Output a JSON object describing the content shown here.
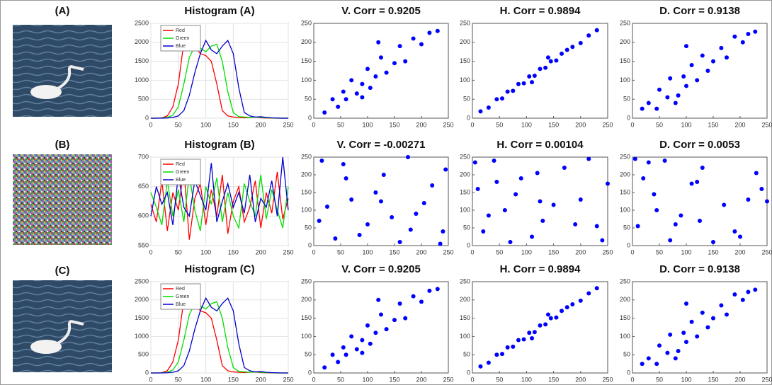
{
  "image_labels": [
    "(A)",
    "(B)",
    "(C)"
  ],
  "chart_data": [
    {
      "type": "line",
      "title": "Histogram (A)",
      "x": [
        0,
        10,
        20,
        30,
        40,
        50,
        60,
        70,
        80,
        90,
        100,
        110,
        120,
        130,
        140,
        150,
        160,
        170,
        180,
        190,
        200,
        210,
        220,
        230,
        240,
        250
      ],
      "series": [
        {
          "name": "Red",
          "color": "#ff0000",
          "values": [
            0,
            0,
            10,
            60,
            300,
            900,
            2000,
            2300,
            1900,
            1700,
            1650,
            1500,
            900,
            200,
            60,
            30,
            20,
            10,
            20,
            30,
            10,
            5,
            0,
            0,
            0,
            0
          ]
        },
        {
          "name": "Green",
          "color": "#00dd00",
          "values": [
            0,
            0,
            5,
            20,
            80,
            300,
            900,
            1600,
            1900,
            1850,
            1750,
            1900,
            1950,
            1500,
            700,
            150,
            40,
            30,
            20,
            30,
            20,
            10,
            5,
            0,
            0,
            0
          ]
        },
        {
          "name": "Blue",
          "color": "#0000cc",
          "values": [
            0,
            0,
            0,
            5,
            20,
            60,
            200,
            600,
            1200,
            1700,
            2050,
            1800,
            1700,
            1900,
            2050,
            1700,
            800,
            150,
            60,
            30,
            40,
            20,
            10,
            5,
            0,
            0
          ]
        }
      ],
      "xlim": [
        0,
        250
      ],
      "xticks": [
        0,
        50,
        100,
        150,
        200,
        250
      ],
      "ylim": [
        0,
        2500
      ],
      "yticks": [
        0,
        500,
        1000,
        1500,
        2000,
        2500
      ],
      "grid": true,
      "legend": "upper left"
    },
    {
      "type": "scatter",
      "title": "V. Corr = 0.9205",
      "color": "#0000ff",
      "x": [
        20,
        35,
        45,
        55,
        60,
        70,
        80,
        90,
        100,
        105,
        115,
        125,
        135,
        150,
        160,
        170,
        185,
        200,
        215,
        230,
        120,
        90
      ],
      "y": [
        15,
        50,
        30,
        70,
        50,
        100,
        65,
        90,
        130,
        80,
        110,
        160,
        120,
        145,
        190,
        150,
        210,
        195,
        225,
        230,
        200,
        55
      ],
      "xlim": [
        0,
        250
      ],
      "xticks": [
        0,
        50,
        100,
        150,
        200,
        250
      ],
      "ylim": [
        0,
        250
      ],
      "yticks": [
        0,
        50,
        100,
        150,
        200,
        250
      ]
    },
    {
      "type": "scatter",
      "title": "H. Corr = 0.9894",
      "color": "#0000ff",
      "x": [
        15,
        30,
        45,
        55,
        65,
        75,
        85,
        95,
        105,
        115,
        125,
        135,
        145,
        155,
        165,
        175,
        185,
        200,
        215,
        230,
        110,
        140
      ],
      "y": [
        18,
        28,
        50,
        52,
        70,
        72,
        90,
        92,
        110,
        112,
        130,
        133,
        150,
        152,
        170,
        180,
        188,
        198,
        218,
        232,
        95,
        160
      ],
      "xlim": [
        0,
        250
      ],
      "xticks": [
        0,
        50,
        100,
        150,
        200,
        250
      ],
      "ylim": [
        0,
        250
      ],
      "yticks": [
        0,
        50,
        100,
        150,
        200,
        250
      ]
    },
    {
      "type": "scatter",
      "title": "D. Corr = 0.9138",
      "color": "#0000ff",
      "x": [
        18,
        30,
        45,
        50,
        65,
        70,
        85,
        95,
        100,
        110,
        120,
        130,
        140,
        150,
        165,
        175,
        190,
        205,
        215,
        228,
        100,
        80
      ],
      "y": [
        25,
        40,
        25,
        75,
        55,
        105,
        60,
        110,
        85,
        140,
        100,
        165,
        125,
        150,
        185,
        160,
        215,
        200,
        222,
        228,
        190,
        40
      ],
      "xlim": [
        0,
        250
      ],
      "xticks": [
        0,
        50,
        100,
        150,
        200,
        250
      ],
      "ylim": [
        0,
        250
      ],
      "yticks": [
        0,
        50,
        100,
        150,
        200,
        250
      ]
    },
    {
      "type": "line",
      "title": "Histogram (B)",
      "x": [
        0,
        10,
        20,
        30,
        40,
        50,
        60,
        70,
        80,
        90,
        100,
        110,
        120,
        130,
        140,
        150,
        160,
        170,
        180,
        190,
        200,
        210,
        220,
        230,
        240,
        250
      ],
      "series": [
        {
          "name": "Red",
          "color": "#ff0000",
          "values": [
            620,
            590,
            660,
            575,
            640,
            610,
            680,
            560,
            630,
            655,
            585,
            645,
            600,
            670,
            570,
            625,
            650,
            590,
            615,
            660,
            580,
            640,
            605,
            675,
            595,
            630
          ]
        },
        {
          "name": "Green",
          "color": "#00dd00",
          "values": [
            640,
            615,
            585,
            660,
            600,
            645,
            590,
            670,
            610,
            575,
            650,
            620,
            665,
            590,
            640,
            600,
            580,
            655,
            625,
            600,
            670,
            595,
            645,
            610,
            580,
            650
          ]
        },
        {
          "name": "Blue",
          "color": "#0000cc",
          "values": [
            600,
            650,
            620,
            640,
            585,
            670,
            615,
            600,
            660,
            635,
            610,
            690,
            590,
            625,
            655,
            615,
            640,
            605,
            670,
            590,
            630,
            615,
            660,
            600,
            700,
            610
          ]
        }
      ],
      "xlim": [
        0,
        250
      ],
      "xticks": [
        0,
        50,
        100,
        150,
        200,
        250
      ],
      "ylim": [
        550,
        700
      ],
      "yticks": [
        550,
        600,
        650,
        700
      ],
      "grid": true,
      "legend": "upper left"
    },
    {
      "type": "scatter",
      "title": "V. Corr = -0.00271",
      "color": "#0000ff",
      "x": [
        15,
        40,
        70,
        100,
        130,
        160,
        190,
        220,
        240,
        25,
        55,
        85,
        115,
        145,
        175,
        205,
        235,
        10,
        60,
        125,
        180,
        245
      ],
      "y": [
        240,
        20,
        130,
        60,
        200,
        10,
        90,
        170,
        40,
        110,
        230,
        30,
        150,
        80,
        250,
        120,
        5,
        70,
        190,
        125,
        45,
        215
      ],
      "xlim": [
        0,
        250
      ],
      "xticks": [
        0,
        50,
        100,
        150,
        200,
        250
      ],
      "ylim": [
        0,
        250
      ],
      "yticks": [
        0,
        50,
        100,
        150,
        200,
        250
      ]
    },
    {
      "type": "scatter",
      "title": "H. Corr = 0.00104",
      "color": "#0000ff",
      "x": [
        240,
        20,
        130,
        60,
        200,
        10,
        90,
        170,
        40,
        110,
        230,
        30,
        150,
        80,
        250,
        120,
        5,
        70,
        190,
        125,
        45,
        215
      ],
      "y": [
        15,
        40,
        70,
        100,
        130,
        160,
        190,
        220,
        240,
        25,
        55,
        85,
        115,
        145,
        175,
        205,
        235,
        10,
        60,
        125,
        180,
        245
      ],
      "xlim": [
        0,
        250
      ],
      "xticks": [
        0,
        50,
        100,
        150,
        200,
        250
      ],
      "ylim": [
        0,
        250
      ],
      "yticks": [
        0,
        50,
        100,
        150,
        200,
        250
      ]
    },
    {
      "type": "scatter",
      "title": "D. Corr = 0.0053",
      "color": "#0000ff",
      "x": [
        110,
        230,
        30,
        150,
        80,
        250,
        120,
        5,
        70,
        190,
        125,
        45,
        215,
        240,
        20,
        130,
        60,
        200,
        10,
        90,
        170,
        40
      ],
      "y": [
        175,
        205,
        235,
        10,
        60,
        125,
        180,
        245,
        15,
        40,
        70,
        100,
        130,
        160,
        190,
        220,
        240,
        25,
        55,
        85,
        115,
        145
      ],
      "xlim": [
        0,
        250
      ],
      "xticks": [
        0,
        50,
        100,
        150,
        200,
        250
      ],
      "ylim": [
        0,
        250
      ],
      "yticks": [
        0,
        50,
        100,
        150,
        200,
        250
      ]
    },
    {
      "type": "line",
      "title": "Histogram (C)",
      "x": [
        0,
        10,
        20,
        30,
        40,
        50,
        60,
        70,
        80,
        90,
        100,
        110,
        120,
        130,
        140,
        150,
        160,
        170,
        180,
        190,
        200,
        210,
        220,
        230,
        240,
        250
      ],
      "series": [
        {
          "name": "Red",
          "color": "#ff0000",
          "values": [
            0,
            0,
            10,
            60,
            300,
            900,
            2000,
            2300,
            1900,
            1700,
            1650,
            1500,
            900,
            200,
            60,
            30,
            20,
            10,
            20,
            30,
            10,
            5,
            0,
            0,
            0,
            0
          ]
        },
        {
          "name": "Green",
          "color": "#00dd00",
          "values": [
            0,
            0,
            5,
            20,
            80,
            300,
            900,
            1600,
            1900,
            1850,
            1750,
            1900,
            1950,
            1500,
            700,
            150,
            40,
            30,
            20,
            30,
            20,
            10,
            5,
            0,
            0,
            0
          ]
        },
        {
          "name": "Blue",
          "color": "#0000cc",
          "values": [
            0,
            0,
            0,
            5,
            20,
            60,
            200,
            600,
            1200,
            1700,
            2050,
            1800,
            1700,
            1900,
            2050,
            1700,
            800,
            150,
            60,
            30,
            40,
            20,
            10,
            5,
            0,
            0
          ]
        }
      ],
      "xlim": [
        0,
        250
      ],
      "xticks": [
        0,
        50,
        100,
        150,
        200,
        250
      ],
      "ylim": [
        0,
        2500
      ],
      "yticks": [
        0,
        500,
        1000,
        1500,
        2000,
        2500
      ],
      "grid": true,
      "legend": "upper left"
    },
    {
      "type": "scatter",
      "title": "V. Corr = 0.9205",
      "color": "#0000ff",
      "x": [
        20,
        35,
        45,
        55,
        60,
        70,
        80,
        90,
        100,
        105,
        115,
        125,
        135,
        150,
        160,
        170,
        185,
        200,
        215,
        230,
        120,
        90
      ],
      "y": [
        15,
        50,
        30,
        70,
        50,
        100,
        65,
        90,
        130,
        80,
        110,
        160,
        120,
        145,
        190,
        150,
        210,
        195,
        225,
        230,
        200,
        55
      ],
      "xlim": [
        0,
        250
      ],
      "xticks": [
        0,
        50,
        100,
        150,
        200,
        250
      ],
      "ylim": [
        0,
        250
      ],
      "yticks": [
        0,
        50,
        100,
        150,
        200,
        250
      ]
    },
    {
      "type": "scatter",
      "title": "H. Corr = 0.9894",
      "color": "#0000ff",
      "x": [
        15,
        30,
        45,
        55,
        65,
        75,
        85,
        95,
        105,
        115,
        125,
        135,
        145,
        155,
        165,
        175,
        185,
        200,
        215,
        230,
        110,
        140
      ],
      "y": [
        18,
        28,
        50,
        52,
        70,
        72,
        90,
        92,
        110,
        112,
        130,
        133,
        150,
        152,
        170,
        180,
        188,
        198,
        218,
        232,
        95,
        160
      ],
      "xlim": [
        0,
        250
      ],
      "xticks": [
        0,
        50,
        100,
        150,
        200,
        250
      ],
      "ylim": [
        0,
        250
      ],
      "yticks": [
        0,
        50,
        100,
        150,
        200,
        250
      ]
    },
    {
      "type": "scatter",
      "title": "D. Corr = 0.9138",
      "color": "#0000ff",
      "x": [
        18,
        30,
        45,
        50,
        65,
        70,
        85,
        95,
        100,
        110,
        120,
        130,
        140,
        150,
        165,
        175,
        190,
        205,
        215,
        228,
        100,
        80
      ],
      "y": [
        25,
        40,
        25,
        75,
        55,
        105,
        60,
        110,
        85,
        140,
        100,
        165,
        125,
        150,
        185,
        160,
        215,
        200,
        222,
        228,
        190,
        40
      ],
      "xlim": [
        0,
        250
      ],
      "xticks": [
        0,
        50,
        100,
        150,
        200,
        250
      ],
      "ylim": [
        0,
        250
      ],
      "yticks": [
        0,
        50,
        100,
        150,
        200,
        250
      ]
    }
  ]
}
